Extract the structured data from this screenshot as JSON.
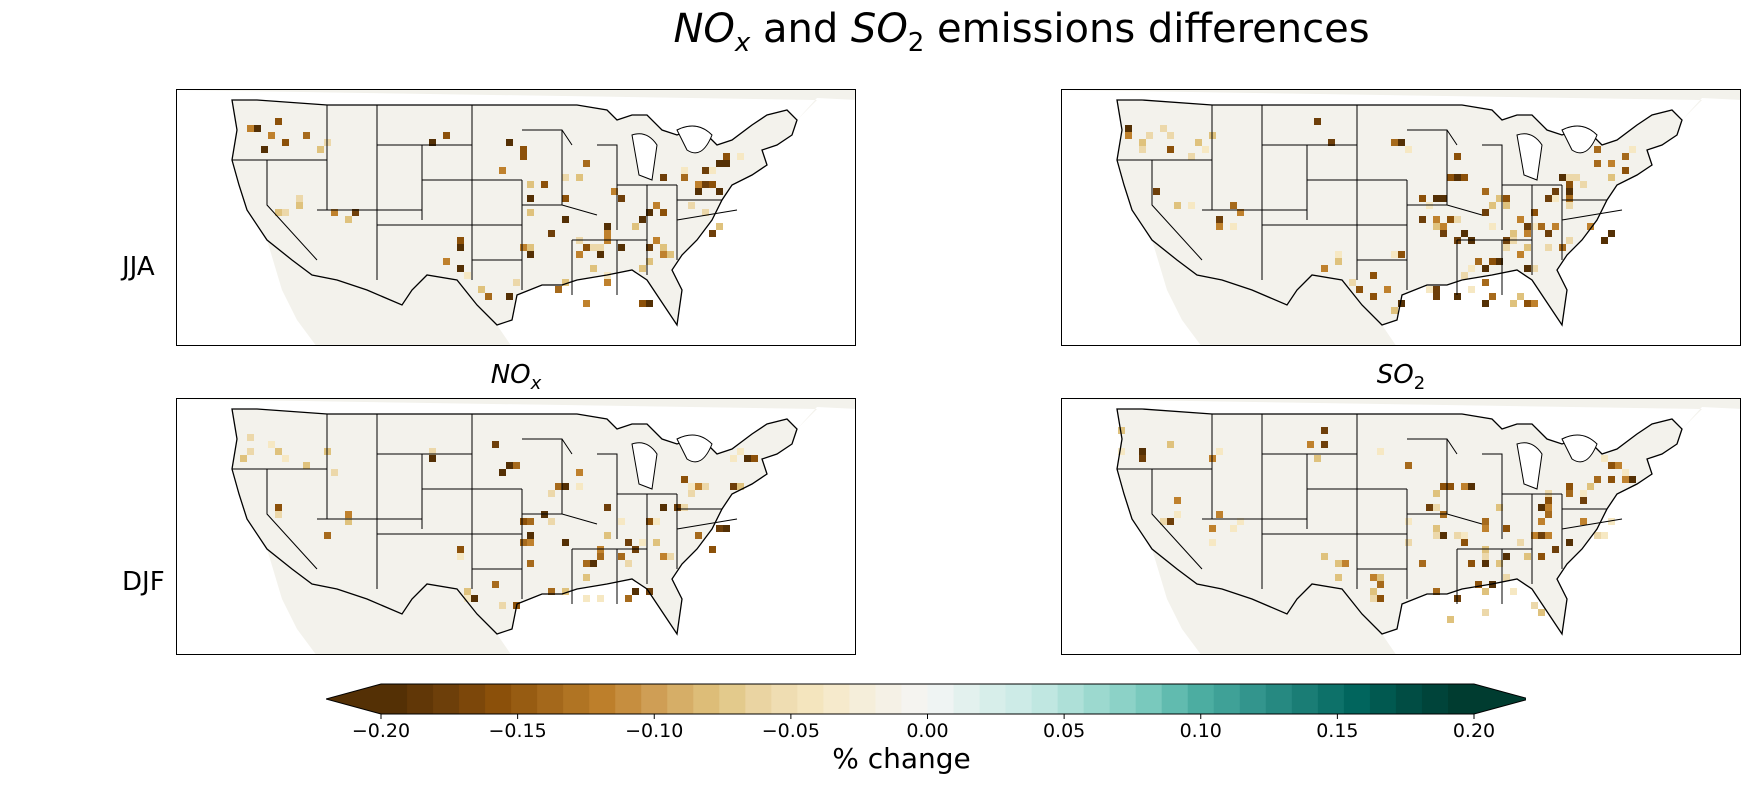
{
  "title": {
    "part1": "NO",
    "sub1": "x",
    "mid": " and ",
    "part2": "SO",
    "sub2": "2",
    "tail": " emissions differences"
  },
  "rows": [
    "JJA",
    "DJF"
  ],
  "columns": [
    {
      "base": "NO",
      "sub": "x"
    },
    {
      "base": "SO",
      "sub": "2"
    }
  ],
  "colorbar": {
    "label": "% change",
    "ticks": [
      "−0.20",
      "−0.15",
      "−0.10",
      "−0.05",
      "0.00",
      "0.05",
      "0.10",
      "0.15",
      "0.20"
    ],
    "min": -0.2,
    "max": 0.2,
    "extend": "both",
    "colormap": "BrBG",
    "colors": [
      "#543005",
      "#6e3f0a",
      "#8c510a",
      "#a66a1c",
      "#bf812d",
      "#d1a25a",
      "#dfc27d",
      "#ecd8aa",
      "#f6e8c3",
      "#f5f0e1",
      "#f5f5f5",
      "#dcefec",
      "#c7eae5",
      "#a2dcd2",
      "#80cdc1",
      "#4fb0a4",
      "#35978f",
      "#1c7f77",
      "#01665e",
      "#014d44",
      "#003c30"
    ]
  },
  "chart_data": {
    "type": "heatmap",
    "title": "NOx and SO2 emissions differences",
    "panels": [
      {
        "row": "JJA",
        "column": "NOx",
        "note": "Gridded % change over contiguous US; nearly all nonzero cells negative (brown)"
      },
      {
        "row": "JJA",
        "column": "SO2",
        "note": "Gridded % change; denser negative cells in Midwest/East"
      },
      {
        "row": "DJF",
        "column": "NOx",
        "note": "Gridded % change; negative cells concentrated in Southeast/Midwest"
      },
      {
        "row": "DJF",
        "column": "SO2",
        "note": "Gridded % change; negative cells in Midwest/Southeast"
      }
    ],
    "colorbar_range": [
      -0.2,
      0.2
    ],
    "colorbar_label": "% change"
  }
}
